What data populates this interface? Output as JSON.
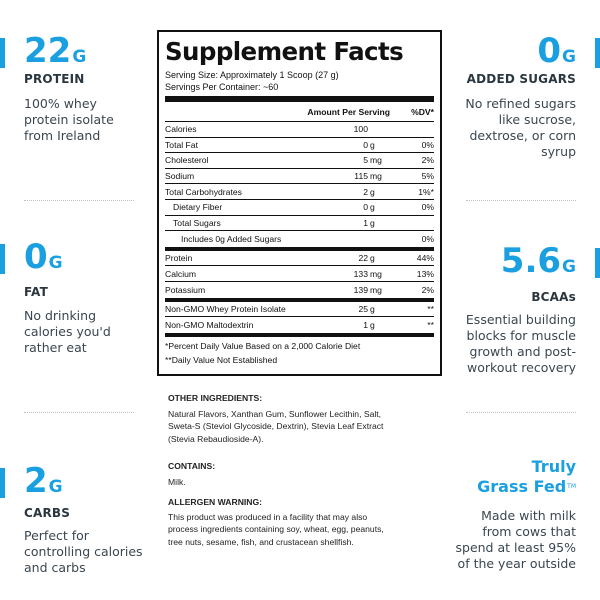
{
  "colors": {
    "accent": "#1aa0e0",
    "text": "#2a3640"
  },
  "left_stats": [
    {
      "value": "22",
      "unit": "G",
      "label": "PROTEIN",
      "desc": [
        "100% whey",
        "protein isolate",
        "from Ireland"
      ]
    },
    {
      "value": "0",
      "unit": "G",
      "label": "FAT",
      "desc": [
        "No drinking",
        "calories you'd",
        "rather eat"
      ]
    },
    {
      "value": "2",
      "unit": "G",
      "label": "CARBS",
      "desc": [
        "Perfect for",
        "controlling calories",
        "and carbs"
      ]
    }
  ],
  "right_stats": [
    {
      "value": "0",
      "unit": "G",
      "label": "ADDED SUGARS",
      "desc": [
        "No refined sugars",
        "like sucrose,",
        "dextrose, or corn",
        "syrup"
      ]
    },
    {
      "value": "5.6",
      "unit": "G",
      "label": "BCAAs",
      "desc": [
        "Essential building",
        "blocks for muscle",
        "growth and post-",
        "workout recovery"
      ]
    },
    {
      "title": [
        "Truly",
        "Grass Fed"
      ],
      "tm": "TM",
      "desc": [
        "Made with milk",
        "from cows that",
        "spend at least 95%",
        "of the year outside"
      ]
    }
  ],
  "facts": {
    "title": "Supplement Facts",
    "serving_size": "Serving Size: Approximately 1 Scoop (27 g)",
    "servings_per_container": "Servings Per Container: ~60",
    "header": {
      "amount": "Amount Per Serving",
      "dv": "%DV*"
    },
    "rows": [
      {
        "name": "Calories",
        "amount": "100",
        "unit": "",
        "dv": "",
        "indent": 0
      },
      {
        "name": "Total Fat",
        "amount": "0",
        "unit": "g",
        "dv": "0%",
        "indent": 0
      },
      {
        "name": "Cholesterol",
        "amount": "5",
        "unit": "mg",
        "dv": "2%",
        "indent": 0
      },
      {
        "name": "Sodium",
        "amount": "115",
        "unit": "mg",
        "dv": "5%",
        "indent": 0
      },
      {
        "name": "Total Carbohydrates",
        "amount": "2",
        "unit": "g",
        "dv": "1%*",
        "indent": 0
      },
      {
        "name": "Dietary Fiber",
        "amount": "0",
        "unit": "g",
        "dv": "0%",
        "indent": 1
      },
      {
        "name": "Total Sugars",
        "amount": "1",
        "unit": "g",
        "dv": "",
        "indent": 1
      },
      {
        "name": "Includes 0g Added Sugars",
        "amount": "",
        "unit": "",
        "dv": "0%",
        "indent": 2
      },
      {
        "name": "Protein",
        "amount": "22",
        "unit": "g",
        "dv": "44%",
        "indent": 0
      },
      {
        "name": "Calcium",
        "amount": "133",
        "unit": "mg",
        "dv": "13%",
        "indent": 0
      },
      {
        "name": "Potassium",
        "amount": "139",
        "unit": "mg",
        "dv": "2%",
        "indent": 0
      },
      {
        "name": "Non-GMO Whey Protein Isolate",
        "amount": "25",
        "unit": "g",
        "dv": "**",
        "indent": 0
      },
      {
        "name": "Non-GMO Maltodextrin",
        "amount": "1",
        "unit": "g",
        "dv": "**",
        "indent": 0
      }
    ],
    "footnote_1": "*Percent Daily Value Based on a 2,000 Calorie Diet",
    "footnote_2": "**Daily Value Not Established"
  },
  "other_ingredients": {
    "heading": "OTHER INGREDIENTS:",
    "lines": [
      "Natural Flavors, Xanthan Gum, Sunflower Lecithin, Salt,",
      "Sweta-S (Steviol Glycoside, Dextrin), Stevia Leaf Extract",
      "(Stevia Rebaudioside-A)."
    ]
  },
  "contains": {
    "heading": "CONTAINS:",
    "text": "Milk."
  },
  "allergen": {
    "heading": "ALLERGEN WARNING:",
    "lines": [
      "This product was produced in a facility that may also",
      "process ingredients containing soy, wheat, egg, peanuts,",
      "tree nuts, sesame, fish, and crustacean shellfish."
    ]
  }
}
